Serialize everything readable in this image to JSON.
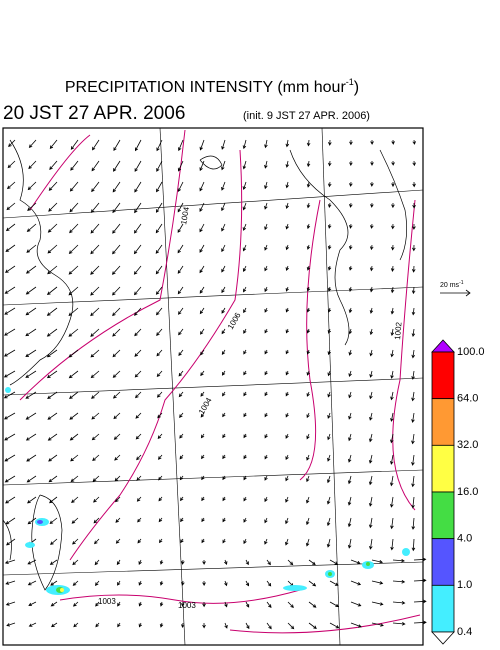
{
  "header": {
    "title": {
      "text": "PRECIPITATION INTENSITY (mm hour",
      "sup": "-1",
      "end": ")"
    },
    "valid_time": "20 JST 27 APR. 2006",
    "init_time": "(init. 9 JST 27 APR. 2006)"
  },
  "wind_scale": {
    "text": "20 ms",
    "sup": "-1"
  },
  "isobar_labels": [
    "1004",
    "1006",
    "1004",
    "1002",
    "1003",
    "1003"
  ],
  "colorbar": {
    "labels": [
      "100.0",
      "64.0",
      "32.0",
      "16.0",
      "4.0",
      "1.0",
      "0.4"
    ],
    "colors": [
      "#b000ff",
      "#ff0000",
      "#ff9933",
      "#ffff44",
      "#44dd44",
      "#5555ff",
      "#44eeff",
      "#ffffff"
    ]
  }
}
